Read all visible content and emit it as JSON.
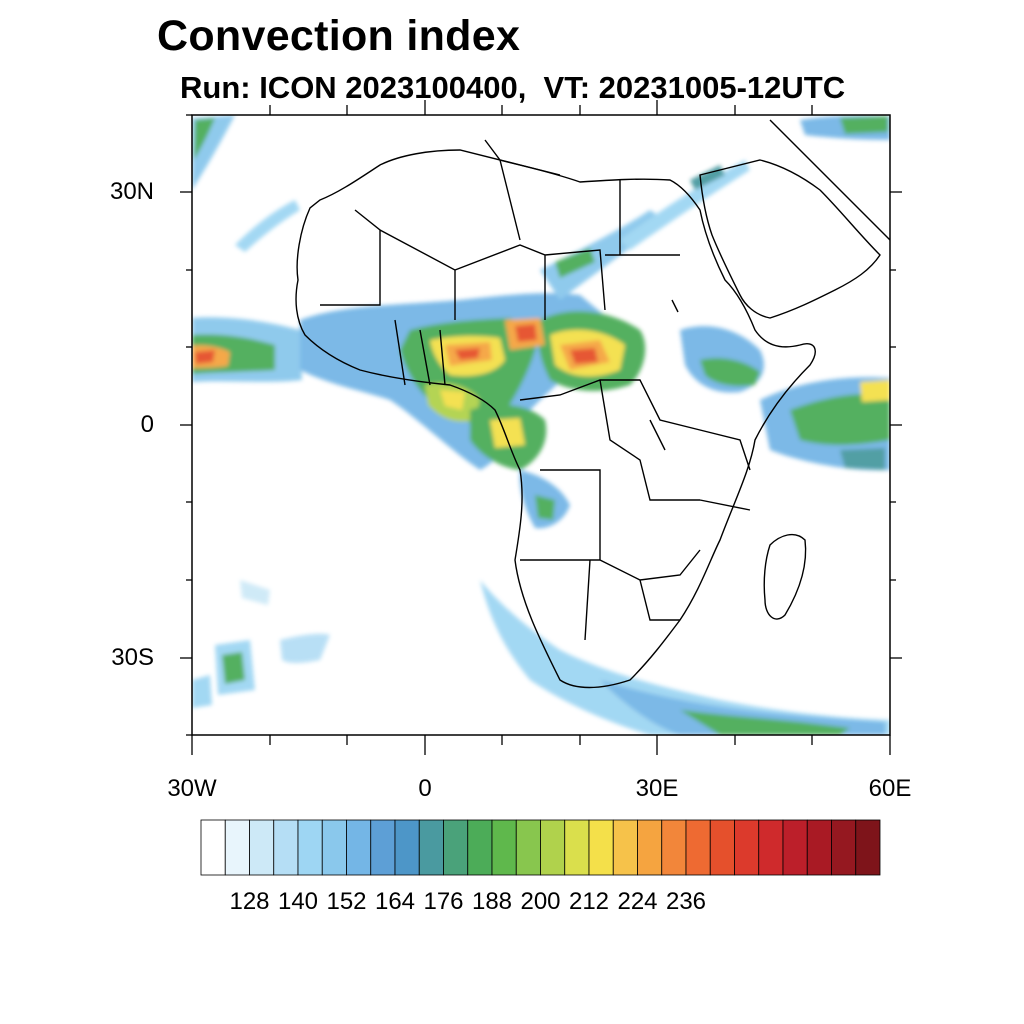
{
  "title": "Convection index",
  "subtitle": "Run: ICON 2023100400,  VT: 20231005-12UTC",
  "axes": {
    "lat_labels": [
      "30N",
      "0",
      "30S"
    ],
    "lon_labels": [
      "30W",
      "0",
      "30E",
      "60E"
    ]
  },
  "colorbar": {
    "labels": [
      "128",
      "140",
      "152",
      "164",
      "176",
      "188",
      "200",
      "212",
      "224",
      "236"
    ],
    "colors": [
      "#ffffff",
      "#e8f5fc",
      "#cde9f7",
      "#b5def5",
      "#9ed6f3",
      "#8ac8ec",
      "#74b6e6",
      "#5d9fd6",
      "#4d96c8",
      "#4a9aa0",
      "#4aa27a",
      "#4cac58",
      "#5fb84c",
      "#88c64e",
      "#b0d24c",
      "#dadf4c",
      "#f4e04a",
      "#f6c24a",
      "#f5a440",
      "#f2863a",
      "#ee6a32",
      "#e5502c",
      "#dc3a2c",
      "#cf2a2c",
      "#bc1f2a",
      "#a91a24",
      "#951820",
      "#7e141a"
    ]
  },
  "legend_colors": {
    "light_blue": "#b5def5",
    "blue": "#74b6e6",
    "teal": "#4a9aa0",
    "green": "#4cac58",
    "lime": "#b0d24c",
    "yellow": "#f4e04a",
    "orange": "#f5a440",
    "red": "#e5502c"
  }
}
